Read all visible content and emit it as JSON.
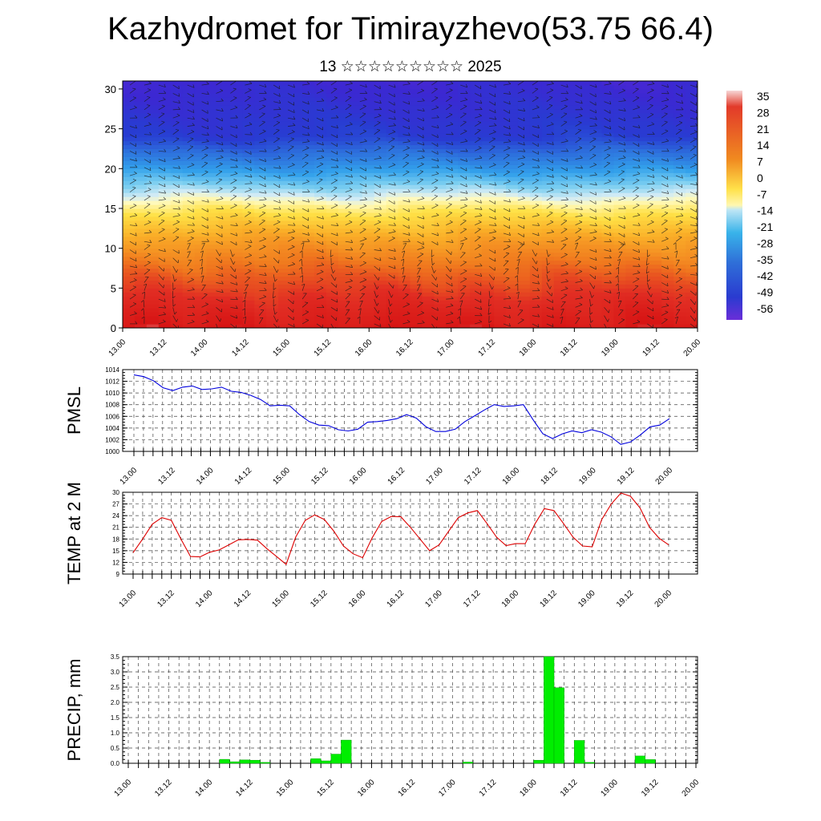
{
  "title": "Kazhydromet for Timirayzhevo(53.75 66.4)",
  "subtitle": "13 ☆☆☆☆☆☆☆☆☆ 2025",
  "chart_data": [
    {
      "type": "heatmap",
      "title": "",
      "x_ticks": [
        "13.00",
        "13.12",
        "14.00",
        "14.12",
        "15.00",
        "15.12",
        "16.00",
        "16.12",
        "17.00",
        "17.12",
        "18.00",
        "18.12",
        "19.00",
        "19.12",
        "20.00"
      ],
      "y_ticks": [
        0,
        5,
        10,
        15,
        20,
        25,
        30
      ],
      "ylim": [
        0,
        31
      ],
      "colorbar_labels": [
        35,
        28,
        21,
        14,
        7,
        0,
        -7,
        -14,
        -21,
        -28,
        -35,
        -42,
        -49,
        -56
      ],
      "colorbar_range": [
        -60,
        38
      ],
      "temperature_by_level": [
        {
          "level": 0,
          "value": 30
        },
        {
          "level": 3,
          "value": 24
        },
        {
          "level": 7,
          "value": 15
        },
        {
          "level": 11,
          "value": 5
        },
        {
          "level": 15,
          "value": -8
        },
        {
          "level": 18,
          "value": -20
        },
        {
          "level": 21,
          "value": -34
        },
        {
          "level": 24,
          "value": -45
        },
        {
          "level": 27,
          "value": -48
        },
        {
          "level": 31,
          "value": -52
        }
      ],
      "wind_vectors": true
    },
    {
      "type": "line",
      "ylabel": "PMSL",
      "ylim": [
        1000,
        1014
      ],
      "y_ticks": [
        1000,
        1002,
        1004,
        1006,
        1008,
        1010,
        1012,
        1014
      ],
      "x_ticks": [
        "13.00",
        "13.12",
        "14.00",
        "14.12",
        "15.00",
        "15.12",
        "16.00",
        "16.12",
        "17.00",
        "17.12",
        "18.00",
        "18.12",
        "19.00",
        "19.12",
        "20.00"
      ],
      "color": "#0000dd",
      "values": [
        1013.1,
        1012.8,
        1012.1,
        1010.9,
        1010.4,
        1011.0,
        1011.2,
        1010.6,
        1010.7,
        1011.0,
        1010.3,
        1010.1,
        1009.6,
        1008.9,
        1007.8,
        1007.9,
        1007.8,
        1006.3,
        1005.1,
        1004.5,
        1004.4,
        1003.7,
        1003.5,
        1003.8,
        1005.0,
        1005.1,
        1005.3,
        1005.6,
        1006.3,
        1005.7,
        1004.2,
        1003.4,
        1003.4,
        1003.8,
        1005.1,
        1006.1,
        1007.1,
        1008.0,
        1007.7,
        1007.8,
        1008.0,
        1005.4,
        1003.0,
        1002.2,
        1003.0,
        1003.5,
        1003.2,
        1003.7,
        1003.3,
        1002.5,
        1001.2,
        1001.6,
        1002.8,
        1004.2,
        1004.5,
        1005.6
      ]
    },
    {
      "type": "line",
      "ylabel": "TEMP at 2 M",
      "ylim": [
        9,
        30
      ],
      "y_ticks": [
        9,
        12,
        15,
        18,
        21,
        24,
        27,
        30
      ],
      "x_ticks": [
        "13.00",
        "13.12",
        "14.00",
        "14.12",
        "15.00",
        "15.12",
        "16.00",
        "16.12",
        "17.00",
        "17.12",
        "18.00",
        "18.12",
        "19.00",
        "19.12",
        "20.00"
      ],
      "color": "#dd0000",
      "values": [
        14.5,
        18.0,
        21.8,
        23.5,
        22.8,
        18.0,
        13.5,
        13.4,
        14.6,
        15.2,
        16.5,
        17.8,
        17.9,
        17.7,
        15.5,
        13.5,
        11.5,
        18.5,
        22.8,
        24.2,
        23.0,
        20.0,
        16.2,
        14.2,
        13.2,
        18.3,
        22.5,
        23.8,
        23.7,
        21.0,
        18.0,
        15.0,
        16.5,
        20.0,
        23.5,
        24.7,
        25.3,
        22.0,
        18.5,
        16.3,
        16.8,
        16.8,
        21.8,
        25.8,
        25.3,
        22.0,
        18.5,
        16.2,
        16.0,
        23.0,
        27.0,
        29.8,
        29.0,
        26.0,
        21.0,
        18.2,
        16.5
      ]
    },
    {
      "type": "bar",
      "ylabel": "PRECIP, mm",
      "ylim": [
        0,
        3.5
      ],
      "y_ticks": [
        "0.0",
        "0.5",
        "1.0",
        "1.5",
        "2.0",
        "2.5",
        "3.0",
        "3.5"
      ],
      "x_ticks": [
        "13.00",
        "13.12",
        "14.00",
        "14.12",
        "15.00",
        "15.12",
        "16.00",
        "16.12",
        "17.00",
        "17.12",
        "18.00",
        "18.12",
        "19.00",
        "19.12",
        "20.00"
      ],
      "color": "#00ee00",
      "bars": [
        {
          "t": 9,
          "value": 0.13
        },
        {
          "t": 10,
          "value": 0.05
        },
        {
          "t": 11,
          "value": 0.11
        },
        {
          "t": 12,
          "value": 0.1
        },
        {
          "t": 13,
          "value": 0.03
        },
        {
          "t": 18,
          "value": 0.15
        },
        {
          "t": 19,
          "value": 0.08
        },
        {
          "t": 20,
          "value": 0.3
        },
        {
          "t": 21,
          "value": 0.76
        },
        {
          "t": 33,
          "value": 0.04
        },
        {
          "t": 40,
          "value": 0.1
        },
        {
          "t": 41,
          "value": 3.5
        },
        {
          "t": 42,
          "value": 2.48
        },
        {
          "t": 44,
          "value": 0.75
        },
        {
          "t": 45,
          "value": 0.03
        },
        {
          "t": 50,
          "value": 0.24
        },
        {
          "t": 51,
          "value": 0.12
        }
      ]
    }
  ]
}
